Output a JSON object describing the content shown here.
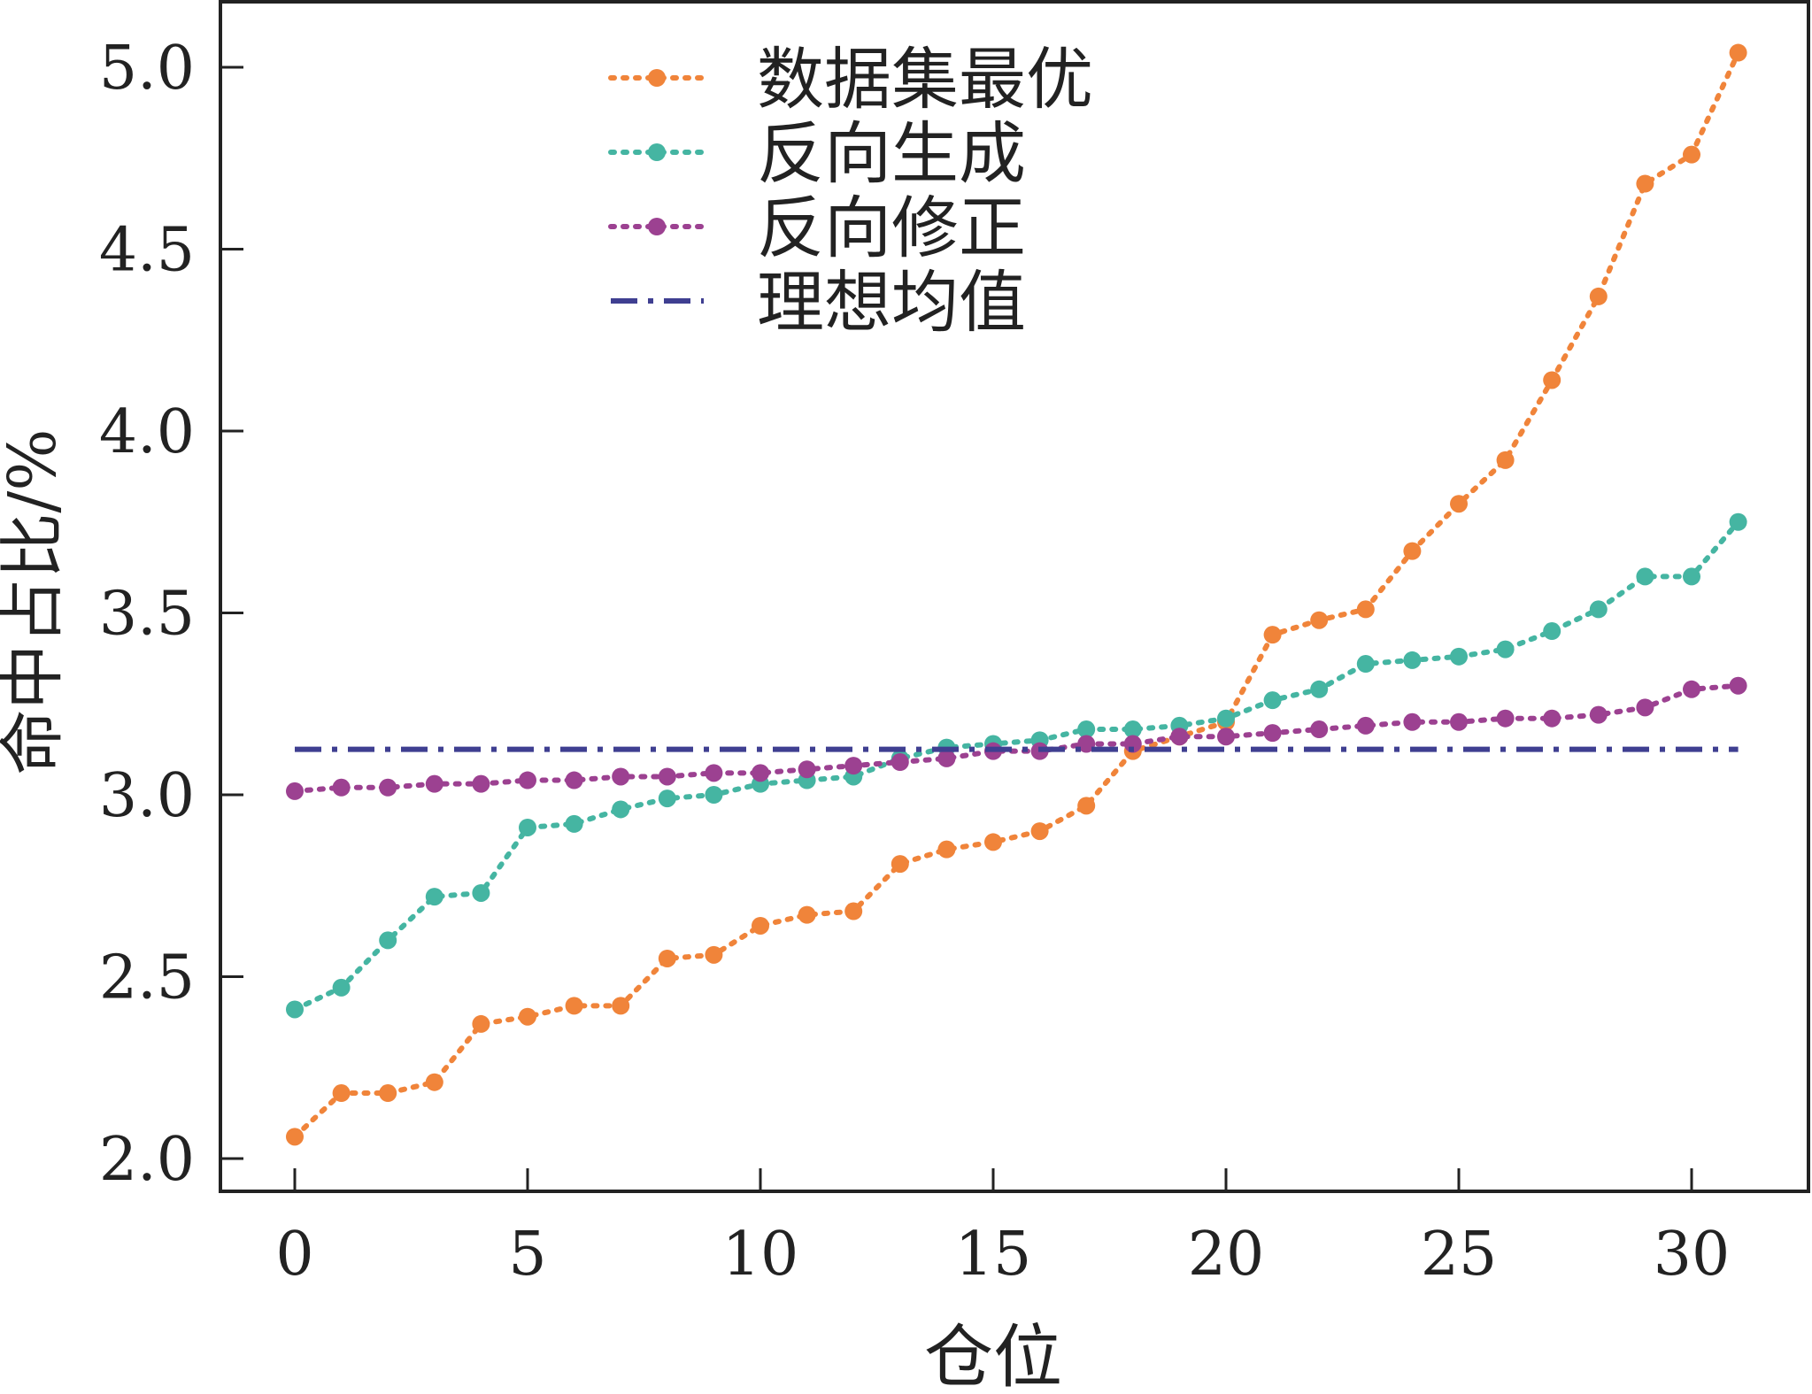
{
  "chart_data": {
    "type": "line",
    "title": "",
    "xlabel": "仓位",
    "ylabel": "命中占比/%",
    "xlim": [
      -1.6,
      32.5
    ],
    "ylim": [
      1.91,
      5.18
    ],
    "xticks": [
      0,
      5,
      10,
      15,
      20,
      25,
      30
    ],
    "xtick_labels": [
      "0",
      "5",
      "10",
      "15",
      "20",
      "25",
      "30"
    ],
    "yticks": [
      2.0,
      2.5,
      3.0,
      3.5,
      4.0,
      4.5,
      5.0
    ],
    "ytick_labels": [
      "2.0",
      "2.5",
      "3.0",
      "3.5",
      "4.0",
      "4.5",
      "5.0"
    ],
    "grid": false,
    "legend_position": "top-center",
    "x": [
      0,
      1,
      2,
      3,
      4,
      5,
      6,
      7,
      8,
      9,
      10,
      11,
      12,
      13,
      14,
      15,
      16,
      17,
      18,
      19,
      20,
      21,
      22,
      23,
      24,
      25,
      26,
      27,
      28,
      29,
      30,
      31
    ],
    "series": [
      {
        "name": "数据集最优",
        "color": "#f0843a",
        "style": "dotted-marker",
        "values": [
          2.06,
          2.18,
          2.18,
          2.21,
          2.37,
          2.39,
          2.42,
          2.42,
          2.55,
          2.56,
          2.64,
          2.67,
          2.68,
          2.81,
          2.85,
          2.87,
          2.9,
          2.97,
          3.12,
          3.16,
          3.2,
          3.44,
          3.48,
          3.51,
          3.67,
          3.8,
          3.92,
          4.14,
          4.37,
          4.68,
          4.76,
          5.04
        ]
      },
      {
        "name": "反向生成",
        "color": "#45b5a2",
        "style": "dotted-marker",
        "values": [
          2.41,
          2.47,
          2.6,
          2.72,
          2.73,
          2.91,
          2.92,
          2.96,
          2.99,
          3.0,
          3.03,
          3.04,
          3.05,
          3.1,
          3.13,
          3.14,
          3.15,
          3.18,
          3.18,
          3.19,
          3.21,
          3.26,
          3.29,
          3.36,
          3.37,
          3.38,
          3.4,
          3.45,
          3.51,
          3.6,
          3.6,
          3.75
        ]
      },
      {
        "name": "反向修正",
        "color": "#9c4191",
        "style": "dotted-marker",
        "values": [
          3.01,
          3.02,
          3.02,
          3.03,
          3.03,
          3.04,
          3.04,
          3.05,
          3.05,
          3.06,
          3.06,
          3.07,
          3.08,
          3.09,
          3.1,
          3.12,
          3.12,
          3.14,
          3.14,
          3.16,
          3.16,
          3.17,
          3.18,
          3.19,
          3.2,
          3.2,
          3.21,
          3.21,
          3.22,
          3.24,
          3.29,
          3.3
        ]
      },
      {
        "name": "理想均值",
        "color": "#3f3f91",
        "style": "dashdot",
        "values": [
          3.125,
          3.125,
          3.125,
          3.125,
          3.125,
          3.125,
          3.125,
          3.125,
          3.125,
          3.125,
          3.125,
          3.125,
          3.125,
          3.125,
          3.125,
          3.125,
          3.125,
          3.125,
          3.125,
          3.125,
          3.125,
          3.125,
          3.125,
          3.125,
          3.125,
          3.125,
          3.125,
          3.125,
          3.125,
          3.125,
          3.125,
          3.125
        ]
      }
    ]
  }
}
